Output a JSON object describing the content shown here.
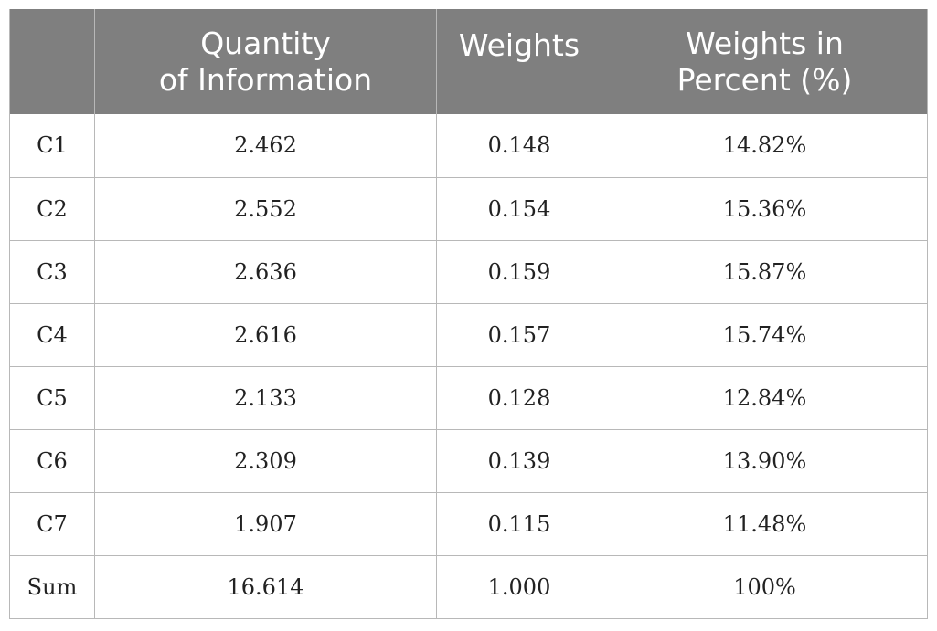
{
  "table": {
    "headers": [
      {
        "line1": "",
        "line2": ""
      },
      {
        "line1": "Quantity",
        "line2": "of Information"
      },
      {
        "line1": "Weights",
        "line2": ""
      },
      {
        "line1": "Weights in",
        "line2": "Percent (%)"
      }
    ],
    "rows": [
      [
        "C1",
        "2.462",
        "0.148",
        "14.82%"
      ],
      [
        "C2",
        "2.552",
        "0.154",
        "15.36%"
      ],
      [
        "C3",
        "2.636",
        "0.159",
        "15.87%"
      ],
      [
        "C4",
        "2.616",
        "0.157",
        "15.74%"
      ],
      [
        "C5",
        "2.133",
        "0.128",
        "12.84%"
      ],
      [
        "C6",
        "2.309",
        "0.139",
        "13.90%"
      ],
      [
        "C7",
        "1.907",
        "0.115",
        "11.48%"
      ],
      [
        "Sum",
        "16.614",
        "1.000",
        "100%"
      ]
    ]
  },
  "colors": {
    "header_bg": "#7f7f7f",
    "header_text": "#ffffff",
    "grid": "#b8b8b8",
    "cell_text": "#222222"
  }
}
